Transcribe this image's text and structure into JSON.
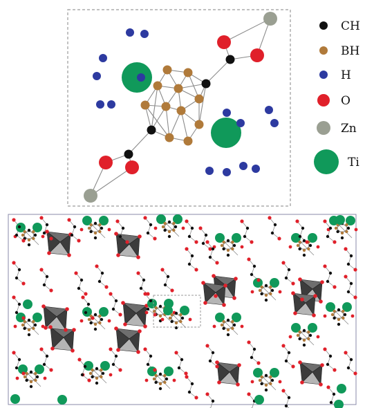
{
  "legend": {
    "items": [
      {
        "label": "CH",
        "color": "#111111",
        "icon": "ch-atom"
      },
      {
        "label": "BH",
        "color": "#b07a3a",
        "icon": "bh-atom"
      },
      {
        "label": "H",
        "color": "#2d3aa0",
        "icon": "h-atom"
      },
      {
        "label": "O",
        "color": "#e0202a",
        "icon": "o-atom"
      },
      {
        "label": "Zn",
        "color": "#9a9f92",
        "icon": "zn-atom"
      },
      {
        "label": "Ti",
        "color": "#10995a",
        "icon": "ti-atom"
      }
    ]
  },
  "colors": {
    "bond": "#8a8a8a",
    "box_border": "#9a9a9a",
    "cell_border": "#8888aa",
    "polyhedron_dark": "#3c3c3c",
    "polyhedron_mid": "#6e6e6e",
    "polyhedron_light": "#b5b5b5"
  }
}
